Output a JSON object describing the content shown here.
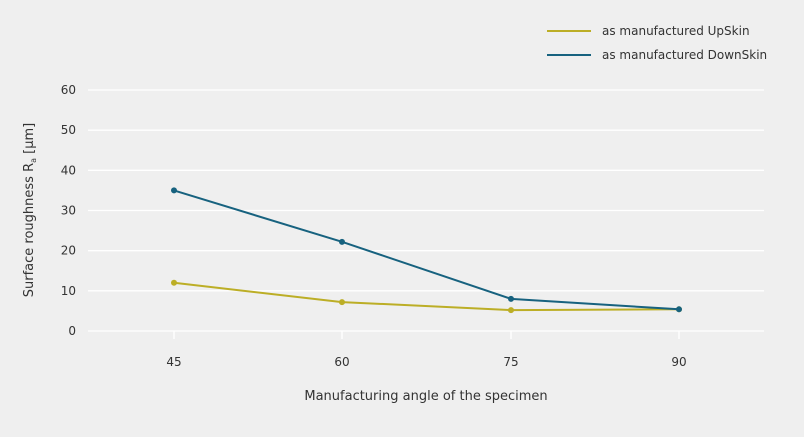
{
  "chart_data": {
    "type": "line",
    "title": "",
    "xlabel": "Manufacturing angle of the specimen",
    "ylabel": {
      "text": "Surface roughness R",
      "subscript": "a",
      "unit": " [µm]"
    },
    "categories": [
      "45",
      "60",
      "75",
      "90"
    ],
    "x": [
      45,
      60,
      75,
      90
    ],
    "ylim": [
      0,
      60
    ],
    "yticks": [
      "0",
      "10",
      "20",
      "30",
      "40",
      "50",
      "60"
    ],
    "grid": true,
    "legend_position": "top-right",
    "series": [
      {
        "name": "as manufactured UpSkin",
        "color": "#bcae26",
        "values": [
          12,
          7.2,
          5.2,
          5.4
        ]
      },
      {
        "name": "as manufactured DownSkin",
        "color": "#17627f",
        "values": [
          35,
          22.2,
          8,
          5.4
        ]
      }
    ],
    "colors": {
      "grid": "#ffffff",
      "axis": "#ffffff",
      "background": "#efefef"
    }
  }
}
